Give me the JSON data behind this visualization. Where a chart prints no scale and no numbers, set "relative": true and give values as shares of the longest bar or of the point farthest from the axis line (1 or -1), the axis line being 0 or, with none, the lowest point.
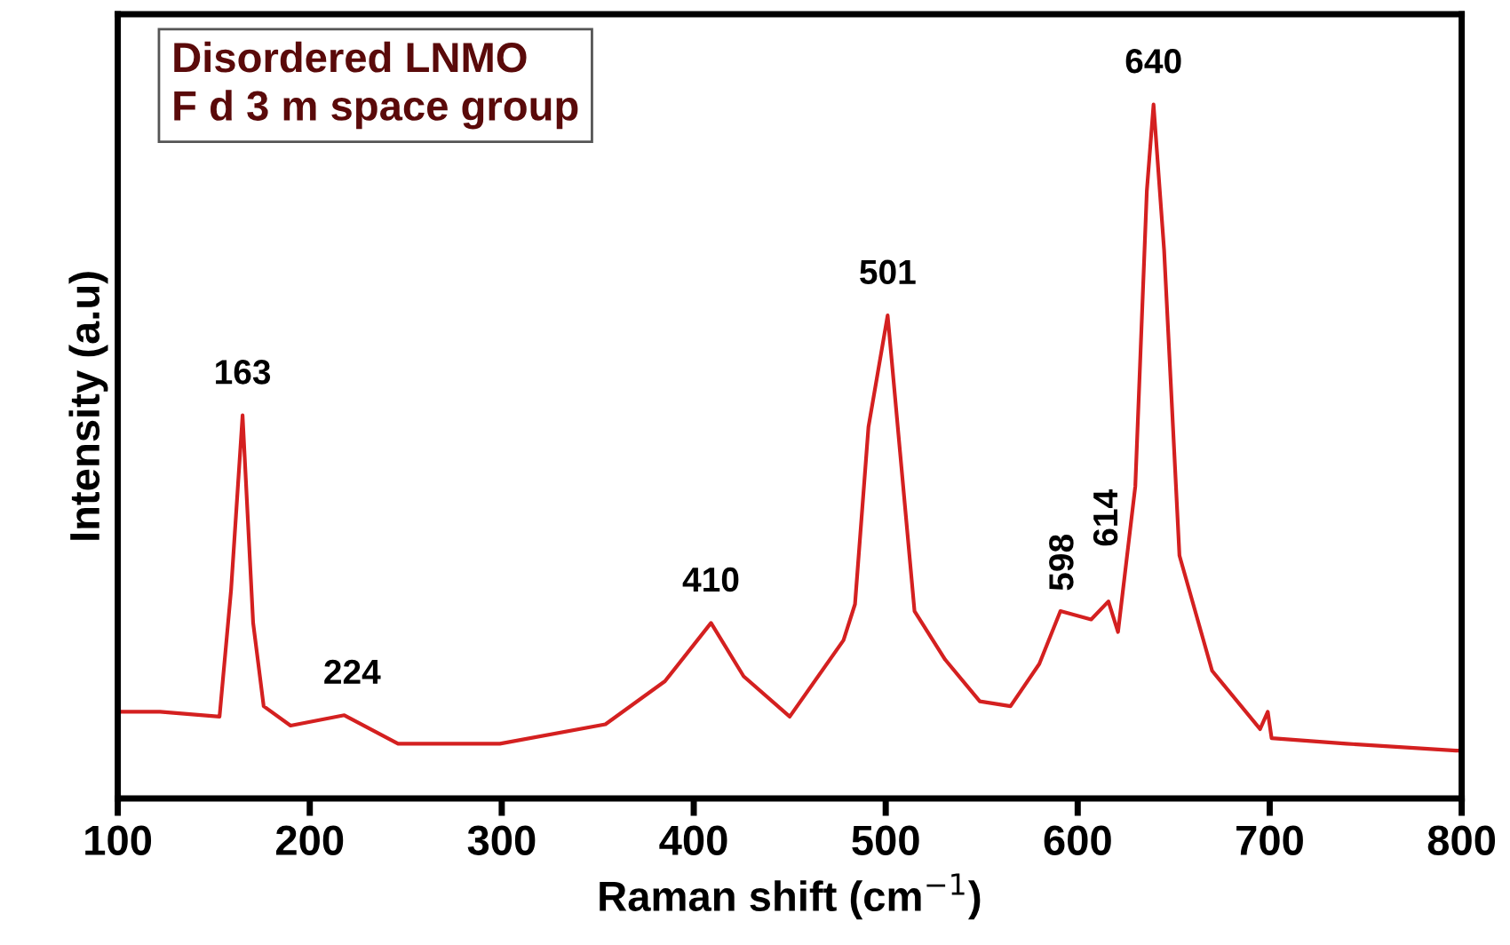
{
  "chart_data": {
    "type": "line",
    "relative": true,
    "xlabel": "Raman shift (cm$^{−1}$)",
    "ylabel": "Intensity (a.u)",
    "xlim": [
      100,
      800
    ],
    "xticks": [
      100,
      200,
      300,
      400,
      500,
      600,
      700,
      800
    ],
    "grid": false,
    "legend": false,
    "series": [
      {
        "color": "#d42020",
        "x": [
          100,
          122,
          153,
          159,
          165,
          170.5,
          176,
          190,
          218,
          246,
          299,
          354,
          385,
          409,
          426,
          450,
          478,
          484,
          491,
          501,
          515,
          531,
          549,
          565,
          580,
          591,
          607,
          616,
          621,
          630,
          636,
          639.5,
          645,
          653,
          670,
          695,
          699,
          701,
          740,
          797,
          800
        ],
        "values": [
          0.125,
          0.125,
          0.118,
          0.3,
          0.552,
          0.253,
          0.133,
          0.105,
          0.12,
          0.079,
          0.079,
          0.107,
          0.169,
          0.253,
          0.176,
          0.118,
          0.228,
          0.28,
          0.535,
          0.696,
          0.27,
          0.2,
          0.14,
          0.133,
          0.194,
          0.27,
          0.258,
          0.284,
          0.24,
          0.45,
          0.875,
          1.0,
          0.79,
          0.35,
          0.184,
          0.1,
          0.125,
          0.087,
          0.079,
          0.069,
          0.069
        ]
      }
    ],
    "annotations": [
      {
        "text": "163",
        "x": 165,
        "y": 0.552
      },
      {
        "text": "224",
        "x": 222,
        "y": 0.12
      },
      {
        "text": "410",
        "x": 409,
        "y": 0.253
      },
      {
        "text": "501",
        "x": 501,
        "y": 0.696
      },
      {
        "text": "598",
        "x": 593,
        "y": 0.27
      },
      {
        "text": "614",
        "x": 616,
        "y": 0.284
      },
      {
        "text": "640",
        "x": 639.5,
        "y": 1.0
      },
      "Disordered LNMO\nF d 3 m space group"
    ]
  }
}
